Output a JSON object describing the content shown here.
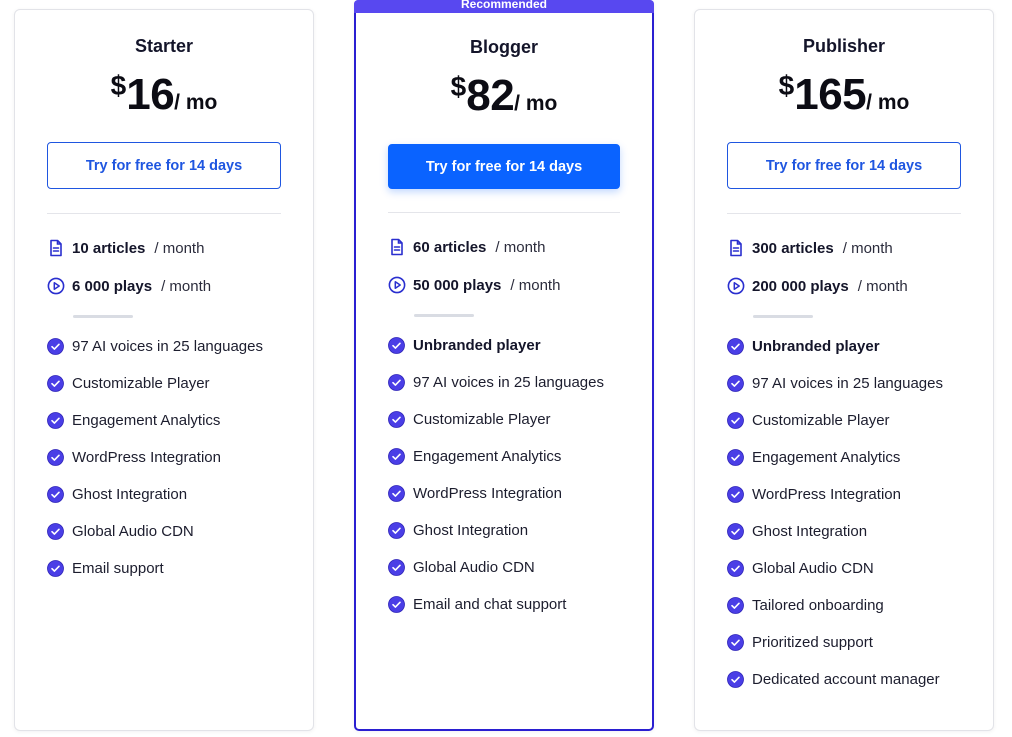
{
  "plans": [
    {
      "name": "Starter",
      "currency": "$",
      "price": "16",
      "period": "/ mo",
      "cta": "Try for free for 14 days",
      "articles": "10 articles",
      "articles_unit": "/ month",
      "plays": "6 000 plays",
      "plays_unit": "/ month",
      "features": [
        "97 AI voices in 25 languages",
        "Customizable Player",
        "Engagement Analytics",
        "WordPress Integration",
        "Ghost Integration",
        "Global Audio CDN",
        "Email support"
      ]
    },
    {
      "badge": "Recommended",
      "name": "Blogger",
      "currency": "$",
      "price": "82",
      "period": "/ mo",
      "cta": "Try for free for 14 days",
      "articles": "60 articles",
      "articles_unit": "/ month",
      "plays": "50 000 plays",
      "plays_unit": "/ month",
      "features": [
        "Unbranded player",
        "97 AI voices in 25 languages",
        "Customizable Player",
        "Engagement Analytics",
        "WordPress Integration",
        "Ghost Integration",
        "Global Audio CDN",
        "Email and chat support"
      ]
    },
    {
      "name": "Publisher",
      "currency": "$",
      "price": "165",
      "period": "/ mo",
      "cta": "Try for free for 14 days",
      "articles": "300 articles",
      "articles_unit": "/ month",
      "plays": "200 000 plays",
      "plays_unit": "/ month",
      "features": [
        "Unbranded player",
        "97 AI voices in 25 languages",
        "Customizable Player",
        "Engagement Analytics",
        "WordPress Integration",
        "Ghost Integration",
        "Global Audio CDN",
        "Tailored onboarding",
        "Prioritized support",
        "Dedicated account manager"
      ]
    }
  ],
  "icons": {
    "articles": "document-icon",
    "plays": "play-circle-icon",
    "feature": "check-circle-icon"
  },
  "colors": {
    "accent": "#0a63ff",
    "outline_button": "#1f56e0",
    "recommended_border": "#2a1fd1",
    "ribbon": "#5848f0",
    "check": "#4a3ee6"
  }
}
